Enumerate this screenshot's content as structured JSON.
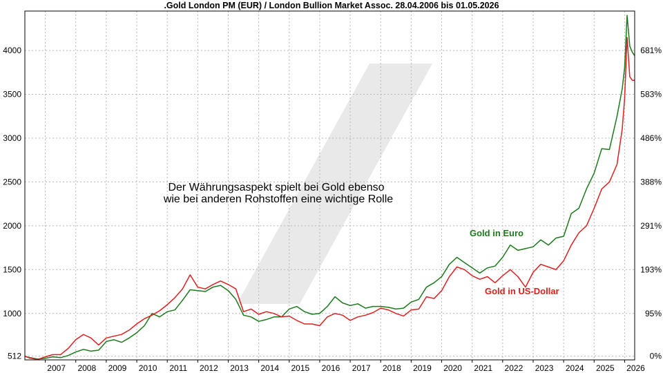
{
  "chart_data": {
    "type": "line",
    "title": ".Gold London PM (EUR) / London Bullion Market Assoc. 28.04.2006 bis 01.05.2026",
    "xlabel": "",
    "ylabel": "",
    "x_ticks": [
      "2007",
      "2008",
      "2009",
      "2010",
      "2011",
      "2012",
      "2013",
      "2014",
      "2015",
      "2016",
      "2017",
      "2018",
      "2019",
      "2020",
      "2021",
      "2022",
      "2023",
      "2024",
      "2025",
      "2026"
    ],
    "x_range": [
      2006.33,
      2026.33
    ],
    "y_left_ticks": [
      512,
      1000,
      1500,
      2000,
      2500,
      3000,
      3500,
      4000
    ],
    "y_left_range": [
      470,
      4450
    ],
    "y_right_ticks": [
      "0%",
      "95%",
      "193%",
      "291%",
      "388%",
      "486%",
      "583%",
      "681%"
    ],
    "y_right_base": 512,
    "grid": true,
    "annotation": [
      "Der Währungsaspekt spielt bei Gold ebenso",
      "wie bei anderen Rohstoffen eine wichtige Rolle"
    ],
    "colors": {
      "euro": "#1a7a1a",
      "usd": "#dd1f1f",
      "grid": "#b5b5b5",
      "watermark": "#e8e8e8"
    },
    "series": [
      {
        "name": "Gold in Euro",
        "points": [
          [
            2006.33,
            512
          ],
          [
            2006.5,
            495
          ],
          [
            2006.75,
            480
          ],
          [
            2007.0,
            488
          ],
          [
            2007.25,
            505
          ],
          [
            2007.5,
            495
          ],
          [
            2007.75,
            520
          ],
          [
            2008.0,
            560
          ],
          [
            2008.25,
            590
          ],
          [
            2008.5,
            570
          ],
          [
            2008.75,
            580
          ],
          [
            2009.0,
            680
          ],
          [
            2009.25,
            700
          ],
          [
            2009.5,
            670
          ],
          [
            2009.75,
            720
          ],
          [
            2010.0,
            780
          ],
          [
            2010.25,
            860
          ],
          [
            2010.5,
            1000
          ],
          [
            2010.75,
            960
          ],
          [
            2011.0,
            1020
          ],
          [
            2011.25,
            1040
          ],
          [
            2011.5,
            1150
          ],
          [
            2011.75,
            1270
          ],
          [
            2012.0,
            1260
          ],
          [
            2012.25,
            1250
          ],
          [
            2012.5,
            1300
          ],
          [
            2012.75,
            1320
          ],
          [
            2013.0,
            1260
          ],
          [
            2013.25,
            1160
          ],
          [
            2013.5,
            980
          ],
          [
            2013.75,
            960
          ],
          [
            2014.0,
            910
          ],
          [
            2014.25,
            930
          ],
          [
            2014.5,
            960
          ],
          [
            2014.75,
            960
          ],
          [
            2015.0,
            1050
          ],
          [
            2015.25,
            1080
          ],
          [
            2015.5,
            1020
          ],
          [
            2015.75,
            990
          ],
          [
            2016.0,
            1000
          ],
          [
            2016.25,
            1080
          ],
          [
            2016.5,
            1190
          ],
          [
            2016.75,
            1120
          ],
          [
            2017.0,
            1090
          ],
          [
            2017.25,
            1110
          ],
          [
            2017.5,
            1060
          ],
          [
            2017.75,
            1080
          ],
          [
            2018.0,
            1080
          ],
          [
            2018.25,
            1070
          ],
          [
            2018.5,
            1050
          ],
          [
            2018.75,
            1060
          ],
          [
            2019.0,
            1130
          ],
          [
            2019.25,
            1160
          ],
          [
            2019.5,
            1300
          ],
          [
            2019.75,
            1350
          ],
          [
            2020.0,
            1420
          ],
          [
            2020.25,
            1560
          ],
          [
            2020.5,
            1640
          ],
          [
            2020.75,
            1580
          ],
          [
            2021.0,
            1520
          ],
          [
            2021.25,
            1460
          ],
          [
            2021.5,
            1520
          ],
          [
            2021.75,
            1540
          ],
          [
            2022.0,
            1640
          ],
          [
            2022.25,
            1780
          ],
          [
            2022.5,
            1720
          ],
          [
            2022.75,
            1740
          ],
          [
            2023.0,
            1760
          ],
          [
            2023.25,
            1840
          ],
          [
            2023.5,
            1780
          ],
          [
            2023.75,
            1860
          ],
          [
            2024.0,
            1880
          ],
          [
            2024.25,
            2140
          ],
          [
            2024.5,
            2200
          ],
          [
            2024.75,
            2420
          ],
          [
            2025.0,
            2600
          ],
          [
            2025.25,
            2880
          ],
          [
            2025.5,
            2870
          ],
          [
            2025.75,
            3250
          ],
          [
            2025.92,
            3560
          ],
          [
            2026.0,
            3800
          ],
          [
            2026.08,
            4400
          ],
          [
            2026.17,
            4050
          ],
          [
            2026.25,
            3980
          ],
          [
            2026.33,
            3940
          ]
        ]
      },
      {
        "name": "Gold in US-Dollar",
        "points": [
          [
            2006.33,
            512
          ],
          [
            2006.5,
            490
          ],
          [
            2006.75,
            475
          ],
          [
            2007.0,
            505
          ],
          [
            2007.25,
            530
          ],
          [
            2007.5,
            530
          ],
          [
            2007.75,
            600
          ],
          [
            2008.0,
            700
          ],
          [
            2008.25,
            760
          ],
          [
            2008.5,
            720
          ],
          [
            2008.75,
            640
          ],
          [
            2009.0,
            720
          ],
          [
            2009.25,
            740
          ],
          [
            2009.5,
            760
          ],
          [
            2009.75,
            810
          ],
          [
            2010.0,
            880
          ],
          [
            2010.25,
            940
          ],
          [
            2010.5,
            980
          ],
          [
            2010.75,
            1030
          ],
          [
            2011.0,
            1100
          ],
          [
            2011.25,
            1180
          ],
          [
            2011.5,
            1280
          ],
          [
            2011.75,
            1440
          ],
          [
            2012.0,
            1300
          ],
          [
            2012.25,
            1280
          ],
          [
            2012.5,
            1330
          ],
          [
            2012.75,
            1370
          ],
          [
            2013.0,
            1330
          ],
          [
            2013.25,
            1280
          ],
          [
            2013.5,
            1020
          ],
          [
            2013.75,
            1050
          ],
          [
            2014.0,
            990
          ],
          [
            2014.25,
            1020
          ],
          [
            2014.5,
            1000
          ],
          [
            2014.75,
            960
          ],
          [
            2015.0,
            970
          ],
          [
            2015.25,
            920
          ],
          [
            2015.5,
            880
          ],
          [
            2015.75,
            880
          ],
          [
            2016.0,
            860
          ],
          [
            2016.25,
            960
          ],
          [
            2016.5,
            1000
          ],
          [
            2016.75,
            980
          ],
          [
            2017.0,
            920
          ],
          [
            2017.25,
            960
          ],
          [
            2017.5,
            980
          ],
          [
            2017.75,
            1010
          ],
          [
            2018.0,
            1060
          ],
          [
            2018.25,
            1040
          ],
          [
            2018.5,
            1000
          ],
          [
            2018.75,
            970
          ],
          [
            2019.0,
            1040
          ],
          [
            2019.25,
            1050
          ],
          [
            2019.5,
            1190
          ],
          [
            2019.75,
            1170
          ],
          [
            2020.0,
            1260
          ],
          [
            2020.25,
            1420
          ],
          [
            2020.5,
            1530
          ],
          [
            2020.75,
            1500
          ],
          [
            2021.0,
            1430
          ],
          [
            2021.25,
            1390
          ],
          [
            2021.5,
            1420
          ],
          [
            2021.75,
            1350
          ],
          [
            2022.0,
            1430
          ],
          [
            2022.25,
            1500
          ],
          [
            2022.5,
            1420
          ],
          [
            2022.75,
            1300
          ],
          [
            2023.0,
            1470
          ],
          [
            2023.25,
            1560
          ],
          [
            2023.5,
            1530
          ],
          [
            2023.75,
            1500
          ],
          [
            2024.0,
            1600
          ],
          [
            2024.25,
            1780
          ],
          [
            2024.5,
            1920
          ],
          [
            2024.75,
            2000
          ],
          [
            2025.0,
            2200
          ],
          [
            2025.25,
            2420
          ],
          [
            2025.5,
            2500
          ],
          [
            2025.75,
            2700
          ],
          [
            2025.92,
            3100
          ],
          [
            2026.0,
            3450
          ],
          [
            2026.08,
            4150
          ],
          [
            2026.17,
            3700
          ],
          [
            2026.25,
            3660
          ],
          [
            2026.33,
            3660
          ]
        ]
      }
    ]
  }
}
